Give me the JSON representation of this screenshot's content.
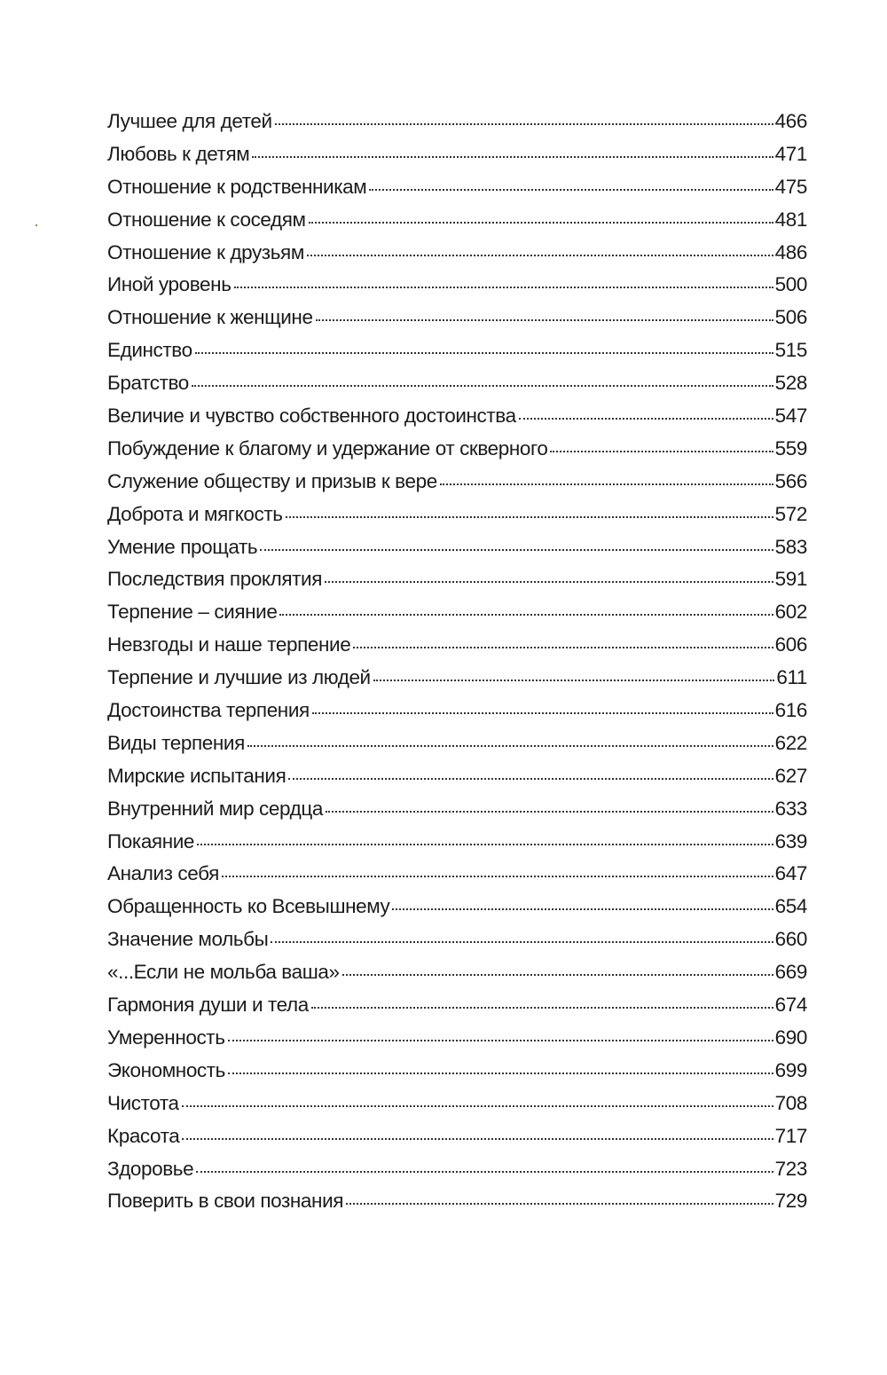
{
  "toc": {
    "entries": [
      {
        "title": "Лучшее для детей",
        "page": "466"
      },
      {
        "title": "Любовь к детям",
        "page": "471"
      },
      {
        "title": "Отношение к родственникам",
        "page": "475"
      },
      {
        "title": "Отношение к соседям",
        "page": "481"
      },
      {
        "title": "Отношение к друзьям",
        "page": "486"
      },
      {
        "title": "Иной уровень",
        "page": "500"
      },
      {
        "title": "Отношение к женщине",
        "page": "506"
      },
      {
        "title": "Единство",
        "page": "515"
      },
      {
        "title": "Братство",
        "page": "528"
      },
      {
        "title": "Величие и чувство собственного достоинства",
        "page": "547"
      },
      {
        "title": "Побуждение к благому и удержание от скверного",
        "page": "559"
      },
      {
        "title": "Служение обществу и призыв к вере",
        "page": "566"
      },
      {
        "title": "Доброта и мягкость",
        "page": "572"
      },
      {
        "title": "Умение прощать",
        "page": "583"
      },
      {
        "title": "Последствия проклятия",
        "page": "591"
      },
      {
        "title": "Терпение – сияние",
        "page": "602"
      },
      {
        "title": "Невзгоды и наше терпение",
        "page": "606"
      },
      {
        "title": "Терпение и лучшие из людей",
        "page": "611"
      },
      {
        "title": "Достоинства терпения",
        "page": "616"
      },
      {
        "title": "Виды терпения",
        "page": "622"
      },
      {
        "title": "Мирские испытания",
        "page": "627"
      },
      {
        "title": "Внутренний мир сердца",
        "page": "633"
      },
      {
        "title": "Покаяние",
        "page": "639"
      },
      {
        "title": "Анализ себя",
        "page": "647"
      },
      {
        "title": "Обращенность ко Всевышнему",
        "page": "654"
      },
      {
        "title": "Значение мольбы",
        "page": "660"
      },
      {
        "title": "«...Если не мольба ваша»",
        "page": "669"
      },
      {
        "title": "Гармония души и тела",
        "page": "674"
      },
      {
        "title": "Умеренность",
        "page": "690"
      },
      {
        "title": "Экономность",
        "page": "699"
      },
      {
        "title": "Чистота",
        "page": "708"
      },
      {
        "title": "Красота",
        "page": "717"
      },
      {
        "title": "Здоровье",
        "page": "723"
      },
      {
        "title": "Поверить в свои познания",
        "page": "729"
      }
    ]
  }
}
